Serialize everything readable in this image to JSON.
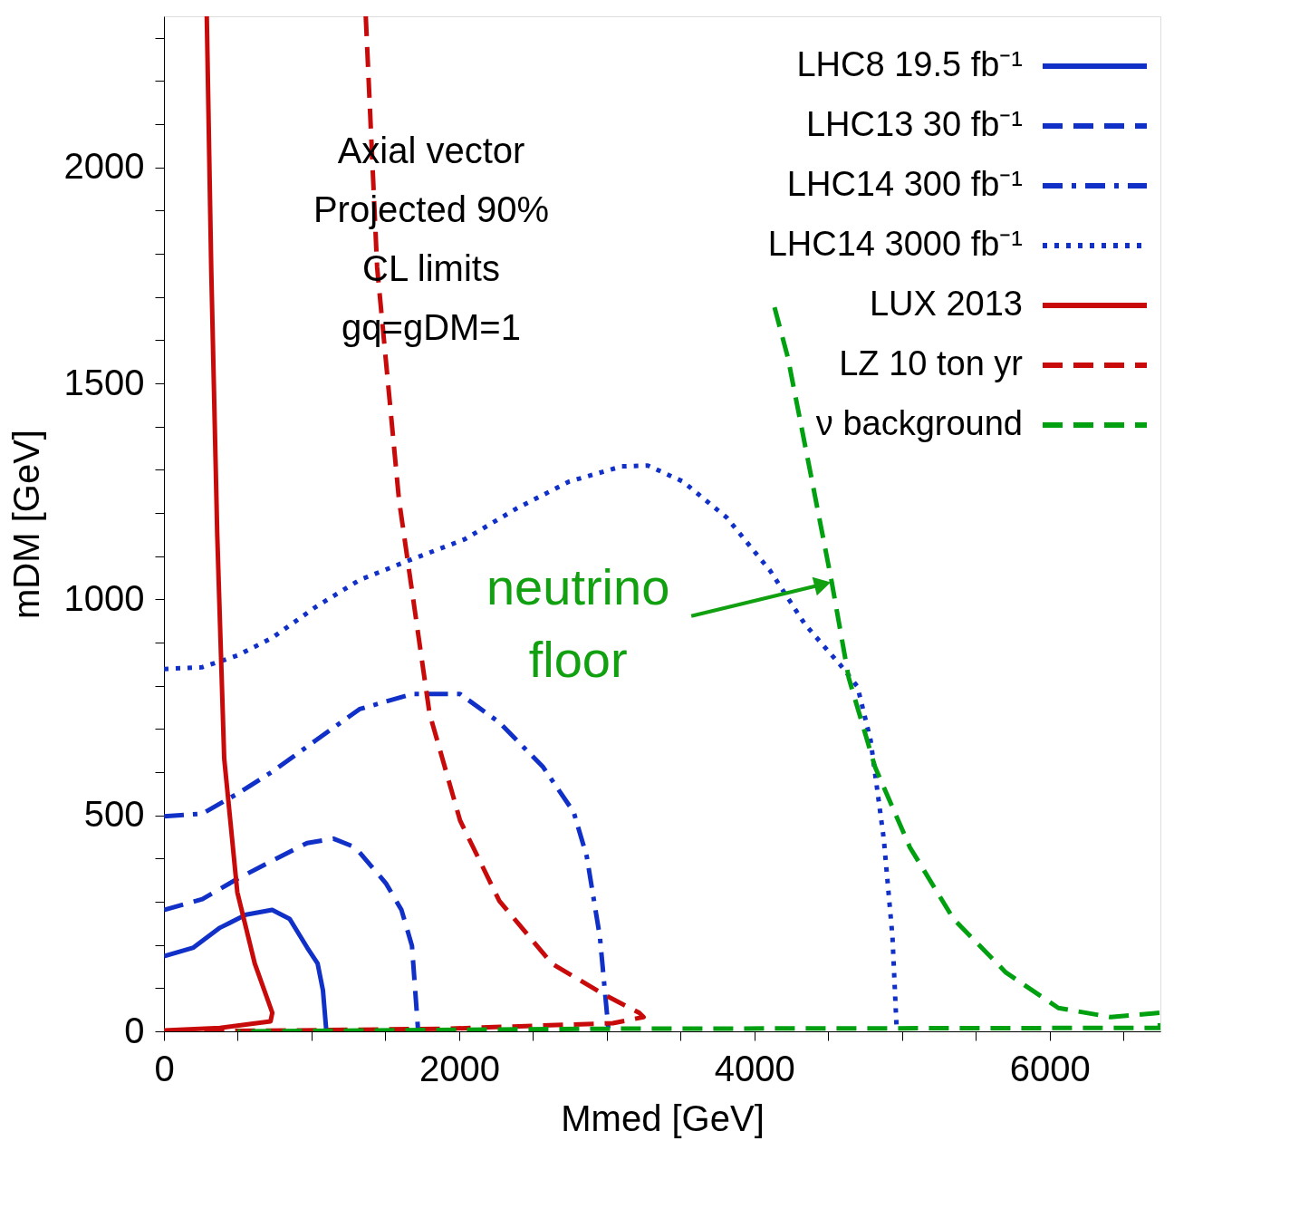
{
  "chart_data": {
    "type": "line",
    "xlabel": "Mmed [GeV]",
    "ylabel": "mDM [GeV]",
    "xlim": [
      0,
      6750
    ],
    "ylim": [
      0,
      2350
    ],
    "xticks": [
      0,
      {
        "value": 500,
        "label": null
      },
      {
        "value": 1000,
        "label": null
      },
      {
        "value": 1500,
        "label": null
      },
      2000,
      {
        "value": 2500,
        "label": null
      },
      {
        "value": 3000,
        "label": null
      },
      {
        "value": 3500,
        "label": null
      },
      4000,
      {
        "value": 4500,
        "label": null
      },
      {
        "value": 5000,
        "label": null
      },
      {
        "value": 5500,
        "label": null
      },
      6000,
      {
        "value": 6500,
        "label": null
      }
    ],
    "yticks": [
      0,
      {
        "value": 100,
        "label": null
      },
      {
        "value": 200,
        "label": null
      },
      {
        "value": 300,
        "label": null
      },
      {
        "value": 400,
        "label": null
      },
      500,
      {
        "value": 600,
        "label": null
      },
      {
        "value": 700,
        "label": null
      },
      {
        "value": 800,
        "label": null
      },
      {
        "value": 900,
        "label": null
      },
      1000,
      {
        "value": 1100,
        "label": null
      },
      {
        "value": 1200,
        "label": null
      },
      {
        "value": 1300,
        "label": null
      },
      {
        "value": 1400,
        "label": null
      },
      1500,
      {
        "value": 1600,
        "label": null
      },
      {
        "value": 1700,
        "label": null
      },
      {
        "value": 1800,
        "label": null
      },
      {
        "value": 1900,
        "label": null
      },
      2000,
      {
        "value": 2100,
        "label": null
      },
      {
        "value": 2200,
        "label": null
      },
      {
        "value": 2300,
        "label": null
      }
    ],
    "grid": false,
    "legend": "top right",
    "marker": "none",
    "series": [
      {
        "name": "LHC8 19.5 fb⁻¹",
        "color": "#1030c8",
        "line_style": "solid",
        "x": [
          0,
          200,
          380,
          556,
          733,
          852,
          970,
          1041,
          1077,
          1100
        ],
        "values": [
          174,
          194,
          240,
          270,
          281,
          260,
          194,
          157,
          95,
          0
        ]
      },
      {
        "name": "LHC13 30 fb⁻¹",
        "color": "#1030c8",
        "line_style": "dashed",
        "x": [
          0,
          260,
          497,
          733,
          970,
          1148,
          1296,
          1503,
          1609,
          1680,
          1722
        ],
        "values": [
          281,
          306,
          353,
          395,
          436,
          446,
          426,
          343,
          281,
          198,
          0
        ]
      },
      {
        "name": "LHC14 300 fb⁻¹",
        "color": "#1030c8",
        "line_style": "dashdot",
        "x": [
          0,
          260,
          497,
          733,
          1030,
          1325,
          1680,
          2006,
          2272,
          2568,
          2775,
          2864,
          2953,
          3012
        ],
        "values": [
          498,
          504,
          550,
          601,
          674,
          746,
          781,
          781,
          715,
          612,
          508,
          405,
          219,
          0
        ]
      },
      {
        "name": "LHC14 3000 fb⁻¹",
        "color": "#1030c8",
        "line_style": "dotted",
        "x": [
          0,
          260,
          497,
          733,
          1030,
          1325,
          1680,
          2036,
          2391,
          2746,
          3101,
          3278,
          3515,
          3811,
          4107,
          4343,
          4580,
          4698,
          4787,
          4876,
          4935,
          4964
        ],
        "values": [
          839,
          843,
          870,
          911,
          983,
          1045,
          1093,
          1139,
          1211,
          1273,
          1308,
          1310,
          1273,
          1190,
          1066,
          942,
          849,
          798,
          674,
          446,
          219,
          0
        ]
      },
      {
        "name": "LUX 2013",
        "color": "#c80a0a",
        "line_style": "solid",
        "x": [
          290,
          320,
          361,
          408,
          497,
          615,
          734,
          722,
          379,
          0
        ],
        "values": [
          2350,
          1769,
          1149,
          632,
          322,
          157,
          43,
          23,
          8,
          2
        ]
      },
      {
        "name": "LZ 10 ton yr",
        "color": "#c80a0a",
        "line_style": "dashed",
        "x": [
          1367,
          1444,
          1592,
          1799,
          2006,
          2272,
          2627,
          2982,
          3219,
          3249,
          3041,
          1917,
          852,
          0
        ],
        "values": [
          2350,
          1769,
          1231,
          736,
          488,
          302,
          157,
          85,
          43,
          33,
          19,
          6,
          2,
          0
        ]
      },
      {
        "name": "ν background",
        "color": "#00a010",
        "line_style": "dashed",
        "x": [
          4136,
          4225,
          4391,
          4521,
          4639,
          4817,
          5053,
          5349,
          5704,
          6059,
          6414,
          6746,
          6746,
          3000,
          500
        ],
        "values": [
          1676,
          1562,
          1273,
          1045,
          818,
          612,
          426,
          260,
          136,
          54,
          33,
          43,
          8,
          6,
          0
        ]
      }
    ],
    "annotations": [
      "Axial vector",
      "Projected 90%",
      "CL limits",
      "gq=gDM=1",
      {
        "text": "neutrino floor",
        "x": 4462,
        "y": 1035
      }
    ]
  }
}
